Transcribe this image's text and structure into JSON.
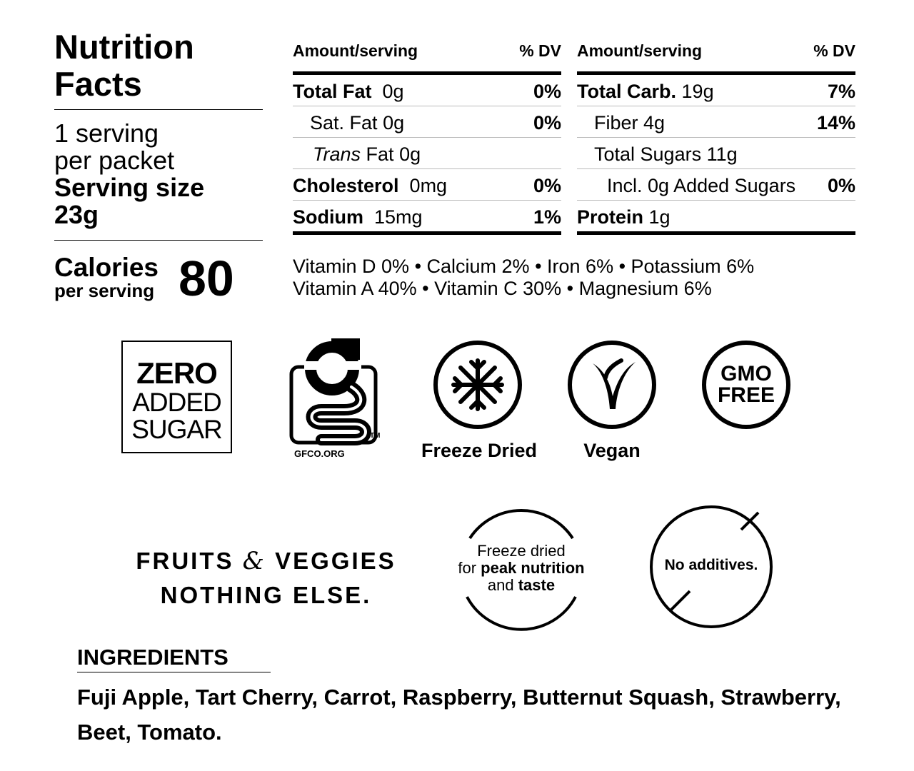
{
  "title": "Nutrition Facts",
  "servings": {
    "count": "1 serving",
    "per": "per packet",
    "size_label": "Serving size",
    "size_value": "23g"
  },
  "calories": {
    "label": "Calories",
    "sub": "per serving",
    "value": "80"
  },
  "left_table": {
    "header_amount": "Amount/serving",
    "header_dv": "% DV",
    "rows": [
      {
        "name": "Total Fat",
        "amount": "0g",
        "dv": "0%"
      },
      {
        "name": "Sat. Fat",
        "amount": "0g",
        "dv": "0%"
      },
      {
        "name": "Trans",
        "name_rest": "Fat",
        "amount": "0g",
        "dv": ""
      },
      {
        "name": "Cholesterol",
        "amount": "0mg",
        "dv": "0%"
      },
      {
        "name": "Sodium",
        "amount": "15mg",
        "dv": "1%"
      }
    ]
  },
  "right_table": {
    "header_amount": "Amount/serving",
    "header_dv": "% DV",
    "rows": [
      {
        "name": "Total Carb.",
        "amount": "19g",
        "dv": "7%"
      },
      {
        "name": "Fiber",
        "amount": "4g",
        "dv": "14%"
      },
      {
        "name": "Total Sugars",
        "amount": "11g",
        "dv": ""
      },
      {
        "name": "Incl. 0g Added Sugars",
        "amount": "",
        "dv": "0%"
      },
      {
        "name": "Protein",
        "amount": "1g",
        "dv": ""
      }
    ]
  },
  "vitamins": {
    "line1": "Vitamin D 0% • Calcium 2% • Iron 6% • Potassium 6%",
    "line2": "Vitamin A 40% • Vitamin C 30% • Magnesium 6%"
  },
  "badges": {
    "zero_line1": "ZERO",
    "zero_line2": "ADDED",
    "zero_line3": "SUGAR",
    "gfco_text": "GFCO.ORG",
    "gfco_tm": "TM",
    "freeze_dried": "Freeze Dried",
    "vegan": "Vegan",
    "gmo_line1": "GMO",
    "gmo_line2": "FREE"
  },
  "tagline": {
    "line1_a": "FRUITS",
    "amp": "&",
    "line1_b": "VEGGIES",
    "line2": "NOTHING ELSE."
  },
  "peak_badge": {
    "line1": "Freeze dried",
    "line2_a": "for",
    "line2_b": "peak nutrition",
    "line3_a": "and",
    "line3_b": "taste"
  },
  "no_additives": "No additives.",
  "ingredients": {
    "title": "INGREDIENTS",
    "text": "Fuji Apple, Tart Cherry, Carrot, Raspberry, Butternut Squash, Strawberry, Beet, Tomato."
  }
}
